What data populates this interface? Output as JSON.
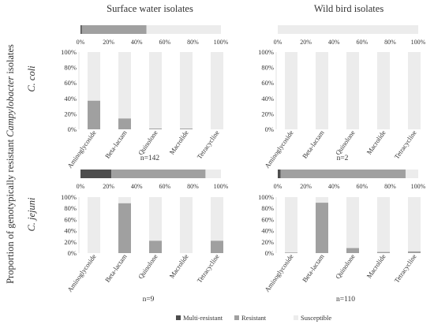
{
  "figure": {
    "y_label_prefix": "Proportion of genotypically resistant ",
    "y_label_genus": "Campylobacter",
    "y_label_suffix": " isolates",
    "col_titles": [
      "Surface water isolates",
      "Wild bird isolates"
    ],
    "row_labels": [
      "C. coli",
      "C. jejuni"
    ]
  },
  "legend": {
    "items": [
      {
        "label": "Multi-resistant",
        "color": "#4d4d4d"
      },
      {
        "label": "Resistant",
        "color": "#a0a0a0"
      },
      {
        "label": "Susceptible",
        "color": "#ececec"
      }
    ]
  },
  "chart_data": [
    {
      "panel": "C. coli – Surface water isolates",
      "type": "bar",
      "n_label": "n=142",
      "categories": [
        "Aminoglycoside",
        "Beta-lactam",
        "Quinolone",
        "Macrolide",
        "Tetracycline"
      ],
      "series": [
        {
          "name": "Resistant",
          "values": [
            37,
            14,
            1,
            1,
            0
          ]
        },
        {
          "name": "Susceptible",
          "values": [
            63,
            86,
            99,
            99,
            100
          ]
        }
      ],
      "ylim": [
        0,
        100
      ],
      "yticks": [
        "0%",
        "20%",
        "40%",
        "60%",
        "80%",
        "100%"
      ],
      "summary_bar": {
        "multi_resistant": 1,
        "resistant": 46,
        "susceptible": 53
      },
      "summary_ticks": [
        "0%",
        "20%",
        "40%",
        "60%",
        "80%",
        "100%"
      ]
    },
    {
      "panel": "C. coli – Wild bird isolates",
      "type": "bar",
      "n_label": "n=2",
      "categories": [
        "Aminoglycoside",
        "Beta-lactam",
        "Quinolone",
        "Macrolide",
        "Tetracycline"
      ],
      "series": [
        {
          "name": "Resistant",
          "values": [
            0,
            0,
            0,
            0,
            0
          ]
        },
        {
          "name": "Susceptible",
          "values": [
            100,
            100,
            100,
            100,
            100
          ]
        }
      ],
      "ylim": [
        0,
        100
      ],
      "yticks": [
        "0%",
        "20%",
        "40%",
        "60%",
        "80%",
        "100%"
      ],
      "summary_bar": {
        "multi_resistant": 0,
        "resistant": 0,
        "susceptible": 100
      },
      "summary_ticks": [
        "0%",
        "20%",
        "40%",
        "60%",
        "80%",
        "100%"
      ]
    },
    {
      "panel": "C. jejuni – Surface water isolates",
      "type": "bar",
      "n_label": "n=9",
      "categories": [
        "Aminoglycoside",
        "Beta-lactam",
        "Quinolone",
        "Macrolide",
        "Tetracycline"
      ],
      "series": [
        {
          "name": "Resistant",
          "values": [
            0,
            89,
            22,
            0,
            22
          ]
        },
        {
          "name": "Susceptible",
          "values": [
            100,
            11,
            78,
            100,
            78
          ]
        }
      ],
      "ylim": [
        0,
        100
      ],
      "yticks": [
        "0%",
        "20%",
        "40%",
        "60%",
        "80%",
        "100%"
      ],
      "summary_bar": {
        "multi_resistant": 22,
        "resistant": 67,
        "susceptible": 11
      },
      "summary_ticks": [
        "0%",
        "20%",
        "40%",
        "60%",
        "80%",
        "100%"
      ]
    },
    {
      "panel": "C. jejuni – Wild bird isolates",
      "type": "bar",
      "n_label": "n=110",
      "categories": [
        "Aminoglycoside",
        "Beta-lactam",
        "Quinolone",
        "Macrolide",
        "Tetracycline"
      ],
      "series": [
        {
          "name": "Resistant",
          "values": [
            1,
            90,
            9,
            2,
            3
          ]
        },
        {
          "name": "Susceptible",
          "values": [
            99,
            10,
            91,
            98,
            97
          ]
        }
      ],
      "ylim": [
        0,
        100
      ],
      "yticks": [
        "0%",
        "20%",
        "40%",
        "60%",
        "80%",
        "100%"
      ],
      "summary_bar": {
        "multi_resistant": 2,
        "resistant": 89,
        "susceptible": 9
      },
      "summary_ticks": [
        "0%",
        "20%",
        "40%",
        "60%",
        "80%",
        "100%"
      ]
    }
  ]
}
